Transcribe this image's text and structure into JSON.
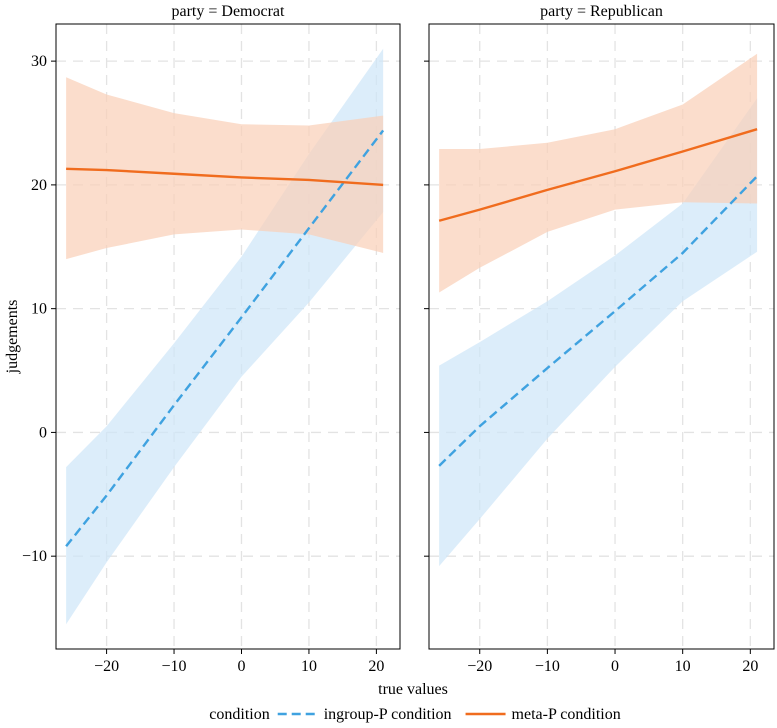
{
  "chart_data": {
    "type": "line",
    "xlabel": "true values",
    "ylabel": "judgements",
    "xlim": [
      -27.5,
      23.5
    ],
    "ylim": [
      -17.5,
      33
    ],
    "x_ticks": [
      -20,
      -10,
      0,
      10,
      20
    ],
    "y_ticks": [
      -10,
      0,
      10,
      20,
      30
    ],
    "x_tick_labels": [
      "−20",
      "−10",
      "0",
      "10",
      "20"
    ],
    "y_tick_labels": [
      "−10",
      "0",
      "10",
      "20",
      "30"
    ],
    "grid": true,
    "legend": {
      "title": "condition",
      "position": "bottom",
      "entries": [
        "ingroup-P condition",
        "meta-P condition"
      ]
    },
    "series_styles": [
      {
        "name": "ingroup-P condition",
        "color": "#3fa2e0",
        "ribbon_color": "#cfe6f8",
        "dash": "dashed"
      },
      {
        "name": "meta-P condition",
        "color": "#f06c1e",
        "ribbon_color": "#f9d0b8",
        "dash": "solid"
      }
    ],
    "panels": [
      {
        "strip": "party = Democrat",
        "series": [
          {
            "name": "ingroup-P condition",
            "x": [
              -26,
              -20,
              -10,
              0,
              10,
              21
            ],
            "y": [
              -9.2,
              -5.1,
              2.2,
              9.3,
              16.5,
              24.4
            ],
            "lower": [
              -15.5,
              -10.5,
              -2.8,
              4.5,
              10.5,
              17.8
            ],
            "upper": [
              -2.8,
              0.5,
              7.2,
              14.2,
              22.5,
              31.0
            ]
          },
          {
            "name": "meta-P condition",
            "x": [
              -26,
              -20,
              -10,
              0,
              10,
              21
            ],
            "y": [
              21.3,
              21.2,
              20.9,
              20.6,
              20.4,
              20.0
            ],
            "lower": [
              14.0,
              14.9,
              16.0,
              16.4,
              16.0,
              14.5
            ],
            "upper": [
              28.7,
              27.3,
              25.8,
              24.9,
              24.8,
              25.6
            ]
          }
        ]
      },
      {
        "strip": "party = Republican",
        "series": [
          {
            "name": "ingroup-P condition",
            "x": [
              -26,
              -20,
              -10,
              0,
              10,
              21
            ],
            "y": [
              -2.7,
              0.5,
              5.2,
              9.8,
              14.5,
              20.7
            ],
            "lower": [
              -10.8,
              -7.0,
              -0.5,
              5.3,
              10.6,
              14.6
            ],
            "upper": [
              5.4,
              7.3,
              10.6,
              14.3,
              18.5,
              27.0
            ]
          },
          {
            "name": "meta-P condition",
            "x": [
              -26,
              -20,
              -10,
              0,
              10,
              21
            ],
            "y": [
              17.1,
              18.0,
              19.6,
              21.1,
              22.7,
              24.5
            ],
            "lower": [
              11.3,
              13.3,
              16.2,
              18.0,
              18.6,
              18.5
            ],
            "upper": [
              22.9,
              22.9,
              23.4,
              24.5,
              26.5,
              30.6
            ]
          }
        ]
      }
    ]
  }
}
